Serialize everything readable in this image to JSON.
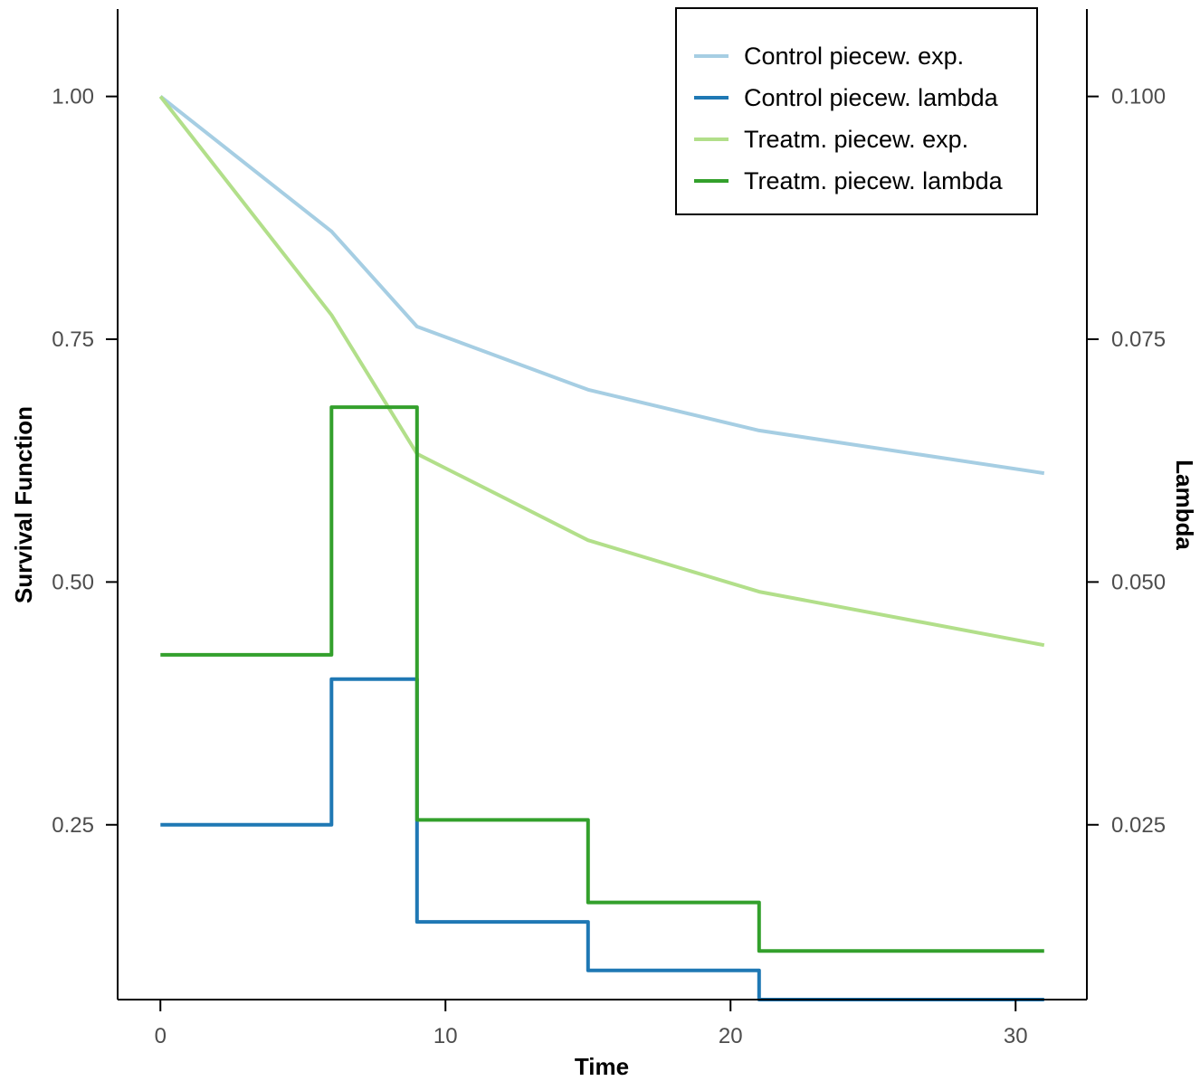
{
  "chart_data": {
    "type": "line",
    "title": "",
    "xlabel": "Time",
    "ylabel_left": "Survival Function",
    "ylabel_right": "Lambda",
    "xlim": [
      -1.5,
      32.5
    ],
    "ylim_left": [
      0.07,
      1.09
    ],
    "ylim_right": [
      0.007,
      0.109
    ],
    "x_ticks": [
      0,
      10,
      20,
      30
    ],
    "x_tick_labels": [
      "0",
      "10",
      "20",
      "30"
    ],
    "y_left_ticks": [
      0.25,
      0.5,
      0.75,
      1.0
    ],
    "y_left_tick_labels": [
      "0.25",
      "0.50",
      "0.75",
      "1.00"
    ],
    "y_right_ticks": [
      0.025,
      0.05,
      0.075,
      0.1
    ],
    "y_right_tick_labels": [
      "0.025",
      "0.050",
      "0.075",
      "0.100"
    ],
    "grid": false,
    "legend_position": "top-right",
    "series": [
      {
        "name": "Control piecew. exp.",
        "axis": "left",
        "style": "line",
        "color": "#a6cee3",
        "x": [
          0,
          6,
          9,
          15,
          21,
          31
        ],
        "y": [
          1.0,
          0.861,
          0.763,
          0.698,
          0.656,
          0.612
        ]
      },
      {
        "name": "Control piecew. lambda",
        "axis": "right",
        "style": "step",
        "color": "#1f78b4",
        "breaks": [
          0,
          6,
          9,
          15,
          21,
          31
        ],
        "values": [
          0.025,
          0.04,
          0.015,
          0.01,
          0.007
        ]
      },
      {
        "name": "Treatm. piecew. exp.",
        "axis": "left",
        "style": "line",
        "color": "#b2df8a",
        "x": [
          0,
          6,
          9,
          15,
          21,
          31
        ],
        "y": [
          1.0,
          0.775,
          0.632,
          0.543,
          0.49,
          0.435
        ]
      },
      {
        "name": "Treatm. piecew. lambda",
        "axis": "right",
        "style": "step",
        "color": "#33a02c",
        "breaks": [
          0,
          6,
          9,
          15,
          21,
          31
        ],
        "values": [
          0.0425,
          0.068,
          0.0255,
          0.017,
          0.012
        ]
      }
    ]
  }
}
